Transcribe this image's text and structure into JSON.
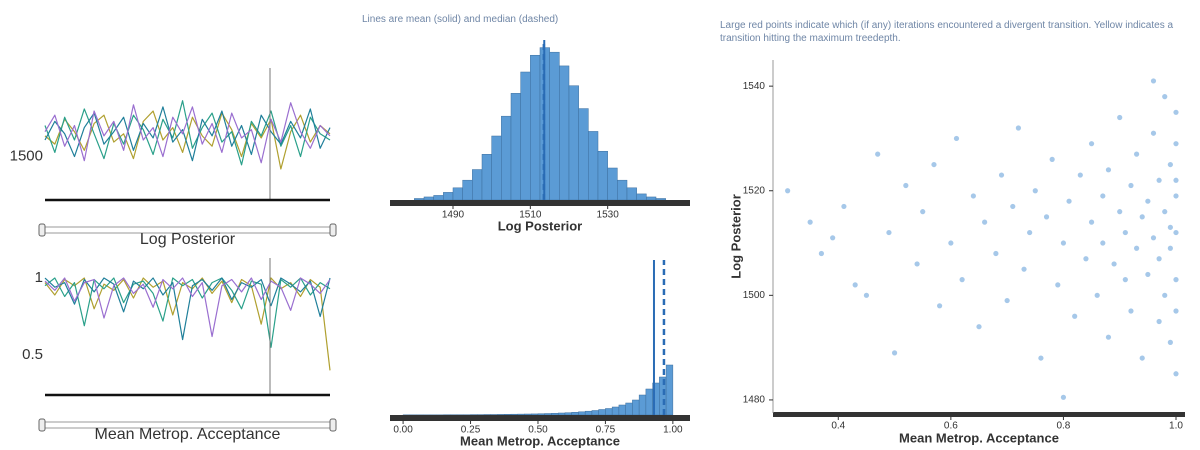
{
  "chart_data": [
    {
      "type": "trace",
      "xlabel": "Log Posterior",
      "ylim": [
        1479,
        1537
      ],
      "yticks": [
        1500
      ],
      "series": [
        {
          "color": "#b0a030",
          "values": [
            1510,
            1506,
            1518,
            1512,
            1503,
            1516,
            1520,
            1507,
            1511,
            1499,
            1517,
            1522,
            1508,
            1514,
            1502,
            1519,
            1510,
            1505,
            1521,
            1513,
            1500,
            1516,
            1509,
            1518,
            1494,
            1512,
            1520,
            1507,
            1515,
            1511
          ]
        },
        {
          "color": "#2aa08a",
          "values": [
            1515,
            1502,
            1519,
            1508,
            1523,
            1511,
            1499,
            1516,
            1506,
            1520,
            1513,
            1501,
            1518,
            1509,
            1527,
            1504,
            1514,
            1521,
            1507,
            1512,
            1496,
            1517,
            1510,
            1522,
            1505,
            1515,
            1500,
            1519,
            1511,
            1508
          ]
        },
        {
          "color": "#1f7f9a",
          "values": [
            1508,
            1517,
            1511,
            1500,
            1514,
            1521,
            1506,
            1512,
            1519,
            1503,
            1516,
            1509,
            1524,
            1507,
            1513,
            1498,
            1518,
            1510,
            1522,
            1505,
            1515,
            1501,
            1520,
            1512,
            1506,
            1517,
            1509,
            1523,
            1504,
            1514
          ]
        },
        {
          "color": "#9a6fd0",
          "values": [
            1512,
            1520,
            1505,
            1515,
            1498,
            1522,
            1510,
            1517,
            1503,
            1525,
            1508,
            1514,
            1500,
            1519,
            1511,
            1524,
            1506,
            1516,
            1502,
            1521,
            1509,
            1513,
            1497,
            1518,
            1507,
            1526,
            1512,
            1504,
            1515,
            1510
          ]
        }
      ]
    },
    {
      "type": "histogram",
      "subtitle": "Lines are mean (solid) and median (dashed)",
      "xlabel": "Log Posterior",
      "bins": [
        1480,
        1482.5,
        1485,
        1487.5,
        1490,
        1492.5,
        1495,
        1497.5,
        1500,
        1502.5,
        1505,
        1507.5,
        1510,
        1512.5,
        1515,
        1517.5,
        1520,
        1522.5,
        1525,
        1527.5,
        1530,
        1532.5,
        1535,
        1537.5,
        1540,
        1542.5,
        1545
      ],
      "counts": [
        1,
        2,
        3,
        5,
        8,
        13,
        20,
        30,
        42,
        55,
        70,
        84,
        95,
        100,
        97,
        88,
        75,
        60,
        45,
        32,
        21,
        13,
        8,
        4,
        2,
        1
      ],
      "mean": 1513.6,
      "median": 1513.5,
      "color": "#5b9bd5",
      "xlim": [
        1475,
        1550
      ],
      "ylim": [
        0,
        105
      ],
      "xticks": [
        1490,
        1510,
        1530
      ]
    },
    {
      "type": "trace",
      "xlabel": "Mean Metrop. Acceptance",
      "ylim": [
        0.24,
        1.052
      ],
      "yticks": [
        0.5,
        1
      ],
      "series": [
        {
          "color": "#b0a030",
          "values": [
            0.97,
            0.89,
            0.99,
            0.95,
            1,
            0.8,
            0.96,
            0.92,
            0.99,
            0.87,
            1,
            0.94,
            0.98,
            0.76,
            0.97,
            0.93,
            1,
            0.9,
            0.98,
            0.84,
            0.99,
            0.95,
            0.7,
            1,
            0.93,
            0.97,
            0.88,
            0.99,
            0.94,
            0.4
          ]
        },
        {
          "color": "#2aa08a",
          "values": [
            0.95,
            1,
            0.88,
            0.97,
            0.69,
            0.99,
            0.93,
            1,
            0.84,
            0.96,
            0.98,
            0.9,
            0.72,
            1,
            0.95,
            0.99,
            0.87,
            0.97,
            1,
            0.92,
            0.8,
            0.98,
            0.96,
            0.55,
            0.99,
            0.94,
            1,
            0.89,
            0.97,
            0.93
          ]
        },
        {
          "color": "#1f7f9a",
          "values": [
            1,
            0.94,
            0.97,
            0.83,
            0.99,
            0.91,
            1,
            0.96,
            0.78,
            0.98,
            0.93,
            1,
            0.89,
            0.97,
            0.6,
            0.95,
            0.99,
            0.92,
            1,
            0.86,
            0.97,
            0.94,
            0.99,
            0.82,
            1,
            0.96,
            0.91,
            0.98,
            0.75,
            1
          ]
        },
        {
          "color": "#9a6fd0",
          "values": [
            0.98,
            0.92,
            1,
            0.85,
            0.97,
            0.99,
            0.74,
            0.95,
            1,
            0.9,
            0.96,
            0.81,
            0.99,
            0.93,
            1,
            0.88,
            0.97,
            0.62,
            0.95,
            0.99,
            0.91,
            1,
            0.86,
            0.98,
            0.94,
            0.79,
            1,
            0.96,
            0.9,
            0.99
          ]
        }
      ]
    },
    {
      "type": "histogram",
      "xlabel": "Mean Metrop. Acceptance",
      "bins": [
        0,
        0.025,
        0.05,
        0.075,
        0.1,
        0.125,
        0.15,
        0.175,
        0.2,
        0.225,
        0.25,
        0.275,
        0.3,
        0.325,
        0.35,
        0.375,
        0.4,
        0.425,
        0.45,
        0.475,
        0.5,
        0.525,
        0.55,
        0.575,
        0.6,
        0.625,
        0.65,
        0.675,
        0.7,
        0.725,
        0.75,
        0.775,
        0.8,
        0.825,
        0.85,
        0.875,
        0.9,
        0.925,
        0.95,
        0.975,
        1
      ],
      "counts": [
        0.2,
        0.2,
        0.2,
        0.2,
        0.2,
        0.2,
        0.3,
        0.3,
        0.3,
        0.3,
        0.4,
        0.4,
        0.5,
        0.5,
        0.6,
        0.7,
        0.8,
        0.9,
        1,
        1.1,
        1.3,
        1.5,
        1.7,
        2,
        2.3,
        2.7,
        3.2,
        3.8,
        4.5,
        5.5,
        6.5,
        8,
        10,
        12,
        15,
        20,
        26,
        32,
        38,
        50
      ],
      "mean": 0.93,
      "median": 0.967,
      "color": "#5b9bd5",
      "xlim": [
        -0.03,
        1.045
      ],
      "ylim": [
        0,
        155
      ],
      "xticks": [
        {
          "value": 0,
          "label": "0.00"
        },
        0.25,
        {
          "value": 0.5,
          "label": "0.50"
        },
        0.75,
        {
          "value": 1,
          "label": "1.00"
        }
      ]
    },
    {
      "type": "scatter",
      "subtitle": "Large red points indicate which (if any) iterations encountered a divergent transition. Yellow indicates a transition hitting the maximum treedepth.",
      "xlabel": "Mean Metrop. Acceptance",
      "ylabel": "Log Posterior",
      "color": "#3a84cf",
      "xlim": [
        0.284,
        1.016
      ],
      "ylim": [
        1477.5,
        1545
      ],
      "xticks": [
        0.4,
        0.6,
        0.8,
        {
          "value": 1,
          "label": "1.0"
        }
      ],
      "yticks": [
        1480,
        1500,
        1520,
        1540
      ],
      "x": [
        0.31,
        0.35,
        0.37,
        0.39,
        0.41,
        0.43,
        0.45,
        0.47,
        0.49,
        0.5,
        0.52,
        0.54,
        0.55,
        0.57,
        0.58,
        0.6,
        0.61,
        0.62,
        0.64,
        0.65,
        0.66,
        0.68,
        0.69,
        0.7,
        0.71,
        0.72,
        0.73,
        0.74,
        0.75,
        0.76,
        0.77,
        0.78,
        0.79,
        0.8,
        0.81,
        0.82,
        0.83,
        0.84,
        0.85,
        0.85,
        0.86,
        0.87,
        0.87,
        0.88,
        0.88,
        0.89,
        0.9,
        0.9,
        0.91,
        0.91,
        0.92,
        0.92,
        0.93,
        0.93,
        0.94,
        0.94,
        0.95,
        0.95,
        0.96,
        0.96,
        0.97,
        0.97,
        0.97,
        0.98,
        0.98,
        0.98,
        0.99,
        0.99,
        0.99,
        0.99,
        1,
        1,
        1,
        1,
        1,
        1,
        1,
        1,
        0.96,
        0.8
      ],
      "y": [
        1520,
        1514,
        1508,
        1511,
        1517,
        1502,
        1500,
        1527,
        1512,
        1489,
        1521,
        1506,
        1516,
        1525,
        1498,
        1510,
        1530,
        1503,
        1519,
        1494,
        1514,
        1508,
        1523,
        1499,
        1517,
        1532,
        1505,
        1512,
        1520,
        1488,
        1515,
        1526,
        1502,
        1510,
        1518,
        1496,
        1523,
        1507,
        1514,
        1529,
        1500,
        1519,
        1510,
        1492,
        1524,
        1506,
        1516,
        1534,
        1503,
        1512,
        1521,
        1497,
        1509,
        1527,
        1515,
        1488,
        1518,
        1504,
        1531,
        1511,
        1495,
        1522,
        1507,
        1516,
        1538,
        1500,
        1513,
        1525,
        1491,
        1509,
        1519,
        1503,
        1529,
        1512,
        1485,
        1497,
        1522,
        1535,
        1541,
        1480.5
      ]
    }
  ]
}
